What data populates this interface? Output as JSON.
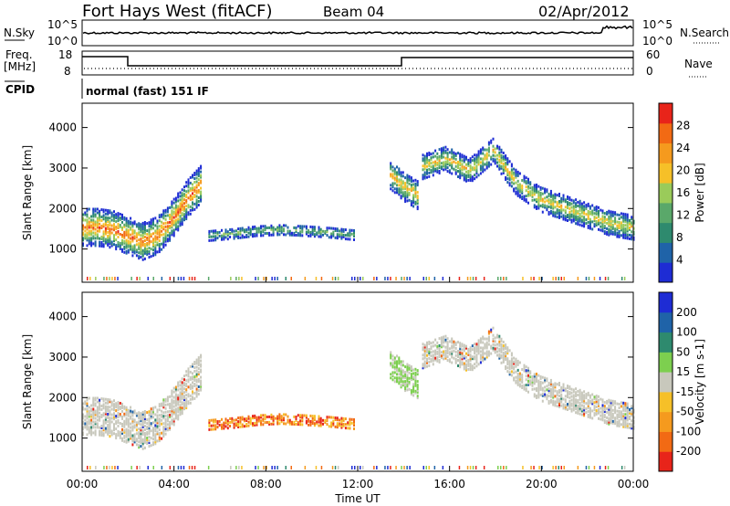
{
  "header": {
    "station": "Fort Hays West (fitACF)",
    "beam": "Beam 04",
    "date": "02/Apr/2012"
  },
  "noise": {
    "left_label": "N.Sky",
    "right_label": "N.Search",
    "left_ticks": [
      "10^5",
      "10^0"
    ],
    "right_ticks": [
      "10^5",
      "10^0"
    ]
  },
  "freq": {
    "label_top": "Freq.",
    "label_unit": "[MHz]",
    "ticks": [
      "18",
      "8"
    ],
    "right_label": "Nave",
    "right_ticks": [
      "60",
      "0"
    ]
  },
  "cpid": {
    "label": "CPID",
    "mode": "normal (fast) 151 IF"
  },
  "colors": {
    "power": [
      "#1e2cd4",
      "#1f63a8",
      "#2e8a6e",
      "#5aa86a",
      "#9acb5a",
      "#f6c028",
      "#f59a1e",
      "#f26a14",
      "#e8241a"
    ],
    "velocity": [
      "#1e2cd4",
      "#1f63a8",
      "#2e8a6e",
      "#7dcf4f",
      "#c8c8bc",
      "#f6c028",
      "#f59a1e",
      "#f26a14",
      "#e8241a"
    ],
    "ground_scatter": "#c8c8bc"
  },
  "chart_data": [
    {
      "type": "heatmap",
      "panel": "power",
      "ylabel": "Slant Range [km]",
      "ylim": [
        180,
        4600
      ],
      "yticks": [
        "1000",
        "2000",
        "3000",
        "4000"
      ],
      "colorbar_label": "Power [dB]",
      "colorbar_ticks": [
        "4",
        "8",
        "12",
        "16",
        "20",
        "24",
        "28"
      ],
      "clim": [
        0,
        30
      ],
      "scatter_regions": [
        {
          "t_start": 0.0,
          "t_end": 5.2,
          "range_center": [
            1500,
            1500,
            1450,
            1300,
            1150,
            1300,
            1700,
            2200,
            2600
          ],
          "width_km": 900,
          "peak_db": 28
        },
        {
          "t_start": 5.5,
          "t_end": 11.8,
          "range_center": [
            1300,
            1350,
            1420,
            1450,
            1420,
            1380,
            1320
          ],
          "width_km": 250,
          "peak_db": 16
        },
        {
          "t_start": 13.4,
          "t_end": 14.6,
          "range_center": [
            2800,
            2500,
            2300
          ],
          "width_km": 700,
          "peak_db": 24
        },
        {
          "t_start": 14.8,
          "t_end": 24.0,
          "range_center": [
            3000,
            3200,
            2900,
            3400,
            2600,
            2200,
            2000,
            1800,
            1600,
            1500
          ],
          "width_km": 600,
          "peak_db": 22
        }
      ]
    },
    {
      "type": "heatmap",
      "panel": "velocity",
      "ylabel": "Slant Range [km]",
      "ylim": [
        180,
        4600
      ],
      "yticks": [
        "1000",
        "2000",
        "3000",
        "4000"
      ],
      "colorbar_label": "Velocity [m s-1]",
      "colorbar_ticks": [
        "200",
        "100",
        "50",
        "15",
        "-15",
        "-50",
        "-100",
        "-200"
      ],
      "clim": [
        -250,
        250
      ]
    }
  ],
  "xaxis": {
    "label": "Time UT",
    "ticks": [
      "00:00",
      "04:00",
      "08:00",
      "12:00",
      "16:00",
      "20:00",
      "00:00"
    ],
    "range_hours": [
      0,
      24
    ]
  }
}
